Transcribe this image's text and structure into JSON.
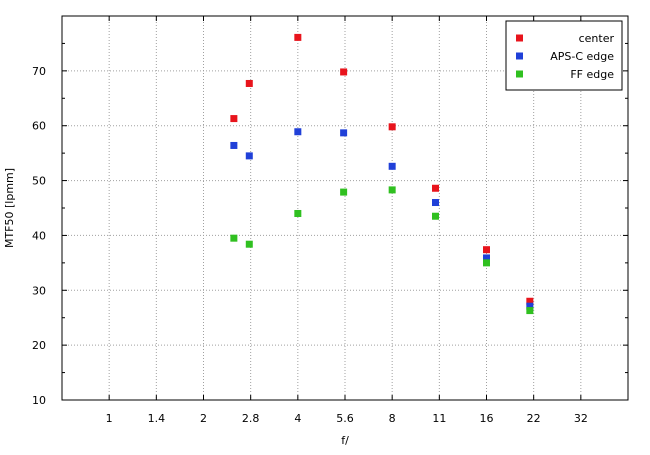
{
  "chart_data": {
    "type": "scatter",
    "xlabel": "f/",
    "ylabel": "MTF50 [lpmm]",
    "x_ticks": [
      "1",
      "1.4",
      "2",
      "2.8",
      "4",
      "5.6",
      "8",
      "11",
      "16",
      "22",
      "32"
    ],
    "x_scale": "log2-fstop",
    "ylim": [
      10,
      80
    ],
    "y_ticks": [
      10,
      20,
      30,
      40,
      50,
      60,
      70
    ],
    "grid": true,
    "legend_position": "top-right",
    "series": [
      {
        "name": "center",
        "color": "#e8141c",
        "points": [
          [
            2.5,
            61.3
          ],
          [
            2.8,
            67.7
          ],
          [
            4,
            76.1
          ],
          [
            5.6,
            69.8
          ],
          [
            8,
            59.8
          ],
          [
            11,
            48.6
          ],
          [
            16,
            37.4
          ],
          [
            22,
            28.0
          ]
        ]
      },
      {
        "name": "APS-C edge",
        "color": "#2040d8",
        "points": [
          [
            2.5,
            56.4
          ],
          [
            2.8,
            54.5
          ],
          [
            4,
            58.9
          ],
          [
            5.6,
            58.7
          ],
          [
            8,
            52.6
          ],
          [
            11,
            46.0
          ],
          [
            16,
            35.9
          ],
          [
            22,
            27.1
          ]
        ]
      },
      {
        "name": "FF edge",
        "color": "#30c020",
        "points": [
          [
            2.5,
            39.5
          ],
          [
            2.8,
            38.4
          ],
          [
            4,
            44.0
          ],
          [
            5.6,
            47.9
          ],
          [
            8,
            48.3
          ],
          [
            11,
            43.5
          ],
          [
            16,
            35.0
          ],
          [
            22,
            26.3
          ]
        ]
      }
    ]
  }
}
